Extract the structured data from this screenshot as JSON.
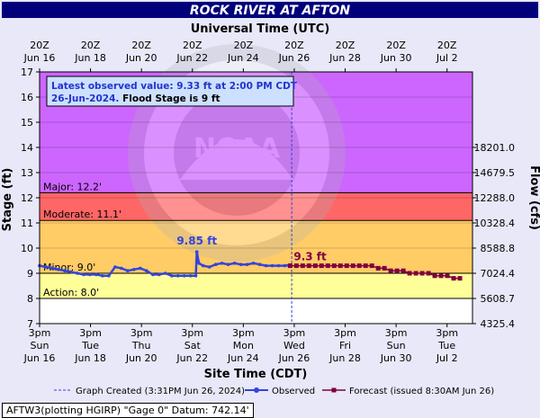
{
  "chart_data": {
    "type": "line",
    "title": "ROCK RIVER AT AFTON",
    "top_axis_title": "Universal Time (UTC)",
    "xlabel": "Site Time (CDT)",
    "ylabel": "Stage (ft)",
    "y2label": "Flow (cfs)",
    "ylim": [
      7,
      17
    ],
    "y_ticks": [
      7,
      8,
      9,
      10,
      11,
      12,
      13,
      14,
      15,
      16,
      17
    ],
    "x_range": [
      "2024-06-16T15:00",
      "2024-07-03T20:00"
    ],
    "top_ticks": [
      {
        "line1": "20Z",
        "line2": "Jun 16"
      },
      {
        "line1": "20Z",
        "line2": "Jun 18"
      },
      {
        "line1": "20Z",
        "line2": "Jun 20"
      },
      {
        "line1": "20Z",
        "line2": "Jun 22"
      },
      {
        "line1": "20Z",
        "line2": "Jun 24"
      },
      {
        "line1": "20Z",
        "line2": "Jun 26"
      },
      {
        "line1": "20Z",
        "line2": "Jun 28"
      },
      {
        "line1": "20Z",
        "line2": "Jun 30"
      },
      {
        "line1": "20Z",
        "line2": "Jul 2"
      }
    ],
    "bottom_ticks": [
      {
        "line1": "3pm",
        "line2": "Sun",
        "line3": "Jun 16"
      },
      {
        "line1": "3pm",
        "line2": "Tue",
        "line3": "Jun 18"
      },
      {
        "line1": "3pm",
        "line2": "Thu",
        "line3": "Jun 20"
      },
      {
        "line1": "3pm",
        "line2": "Sat",
        "line3": "Jun 22"
      },
      {
        "line1": "3pm",
        "line2": "Mon",
        "line3": "Jun 24"
      },
      {
        "line1": "3pm",
        "line2": "Wed",
        "line3": "Jun 26"
      },
      {
        "line1": "3pm",
        "line2": "Fri",
        "line3": "Jun 28"
      },
      {
        "line1": "3pm",
        "line2": "Sun",
        "line3": "Jun 30"
      },
      {
        "line1": "3pm",
        "line2": "Tue",
        "line3": "Jul 2"
      }
    ],
    "flow_ticks": [
      {
        "stage": 7,
        "label": "4325.4"
      },
      {
        "stage": 8,
        "label": "5608.7"
      },
      {
        "stage": 9,
        "label": "7024.4"
      },
      {
        "stage": 10,
        "label": "8588.8"
      },
      {
        "stage": 11,
        "label": "10328.4"
      },
      {
        "stage": 12,
        "label": "12288.0"
      },
      {
        "stage": 13,
        "label": "14679.5"
      },
      {
        "stage": 14,
        "label": "18201.0"
      }
    ],
    "flood_categories": [
      {
        "name": "Action",
        "label": "Action: 8.0'",
        "from": 8.0,
        "to": 9.0,
        "color": "#ffff99"
      },
      {
        "name": "Minor",
        "label": "Minor: 9.0'",
        "from": 9.0,
        "to": 11.1,
        "color": "#ffcc66"
      },
      {
        "name": "Moderate",
        "label": "Moderate: 11.1'",
        "from": 11.1,
        "to": 12.2,
        "color": "#ff6666"
      },
      {
        "name": "Major",
        "label": "Major: 12.2'",
        "from": 12.2,
        "to": 17,
        "color": "#cc66ff"
      }
    ],
    "below_action_color": "#ffffff",
    "graph_created": "2024-06-26T15:31",
    "peak_annotation": {
      "x": "2024-06-22T21:00",
      "y": 9.85,
      "label": "9.85 ft"
    },
    "forecast_annotation": {
      "x": "2024-06-26T14:00",
      "y": 9.3,
      "label": "9.3 ft"
    },
    "series": [
      {
        "name": "Observed",
        "color": "#3344dd",
        "x": [
          "2024-06-16T15:00",
          "2024-06-16T21:00",
          "2024-06-17T03:00",
          "2024-06-17T09:00",
          "2024-06-17T15:00",
          "2024-06-17T21:00",
          "2024-06-18T03:00",
          "2024-06-18T09:00",
          "2024-06-18T15:00",
          "2024-06-18T21:00",
          "2024-06-19T03:00",
          "2024-06-19T09:00",
          "2024-06-19T15:00",
          "2024-06-19T21:00",
          "2024-06-20T03:00",
          "2024-06-20T09:00",
          "2024-06-20T15:00",
          "2024-06-20T21:00",
          "2024-06-21T03:00",
          "2024-06-21T09:00",
          "2024-06-21T15:00",
          "2024-06-21T21:00",
          "2024-06-22T03:00",
          "2024-06-22T09:00",
          "2024-06-22T15:00",
          "2024-06-22T20:00",
          "2024-06-22T21:00",
          "2024-06-22T23:00",
          "2024-06-23T03:00",
          "2024-06-23T09:00",
          "2024-06-23T15:00",
          "2024-06-23T21:00",
          "2024-06-24T03:00",
          "2024-06-24T09:00",
          "2024-06-24T15:00",
          "2024-06-24T21:00",
          "2024-06-25T03:00",
          "2024-06-25T09:00",
          "2024-06-25T15:00",
          "2024-06-25T21:00",
          "2024-06-26T03:00",
          "2024-06-26T09:00",
          "2024-06-26T14:00"
        ],
        "y": [
          9.3,
          9.25,
          9.2,
          9.15,
          9.1,
          9.05,
          9.0,
          8.95,
          8.95,
          8.95,
          8.9,
          8.9,
          9.25,
          9.2,
          9.1,
          9.15,
          9.2,
          9.1,
          8.95,
          8.95,
          9.0,
          8.9,
          8.9,
          8.9,
          8.9,
          8.9,
          9.85,
          9.4,
          9.3,
          9.25,
          9.35,
          9.4,
          9.35,
          9.4,
          9.35,
          9.35,
          9.4,
          9.35,
          9.3,
          9.3,
          9.3,
          9.3,
          9.33
        ]
      },
      {
        "name": "Forecast (issued 8:30AM Jun 26)",
        "color": "#800040",
        "x": [
          "2024-06-26T14:00",
          "2024-06-26T20:00",
          "2024-06-27T02:00",
          "2024-06-27T08:00",
          "2024-06-27T14:00",
          "2024-06-27T20:00",
          "2024-06-28T02:00",
          "2024-06-28T08:00",
          "2024-06-28T14:00",
          "2024-06-28T20:00",
          "2024-06-29T02:00",
          "2024-06-29T08:00",
          "2024-06-29T14:00",
          "2024-06-29T20:00",
          "2024-06-30T02:00",
          "2024-06-30T08:00",
          "2024-06-30T14:00",
          "2024-06-30T20:00",
          "2024-07-01T02:00",
          "2024-07-01T08:00",
          "2024-07-01T14:00",
          "2024-07-01T20:00",
          "2024-07-02T02:00",
          "2024-07-02T08:00",
          "2024-07-02T14:00",
          "2024-07-02T20:00",
          "2024-07-03T02:00",
          "2024-07-03T08:00"
        ],
        "y": [
          9.3,
          9.3,
          9.3,
          9.3,
          9.3,
          9.3,
          9.3,
          9.3,
          9.3,
          9.3,
          9.3,
          9.3,
          9.3,
          9.3,
          9.2,
          9.2,
          9.1,
          9.1,
          9.1,
          9.0,
          9.0,
          9.0,
          9.0,
          8.9,
          8.9,
          8.9,
          8.8,
          8.8
        ]
      }
    ],
    "legend": [
      {
        "key": "created",
        "label": "Graph Created (3:31PM Jun 26, 2024)"
      },
      {
        "key": "observed",
        "label": "Observed"
      },
      {
        "key": "forecast",
        "label": "Forecast (issued 8:30AM Jun 26)"
      }
    ],
    "info_box": {
      "line1": "Latest observed value: 9.33 ft at 2:00 PM CDT",
      "line2_date": "26-Jun-2024",
      "line2_flood": "Flood Stage is 9 ft"
    },
    "watermark": {
      "logo_text": "NOAA",
      "seal_text": "NATIONAL OCEANIC AND ATMOSPHERIC ADMINISTRATION · U.S. DEPARTMENT OF COMMERCE"
    },
    "footer": "AFTW3(plotting HGIRP) \"Gage 0\" Datum: 742.14'"
  }
}
